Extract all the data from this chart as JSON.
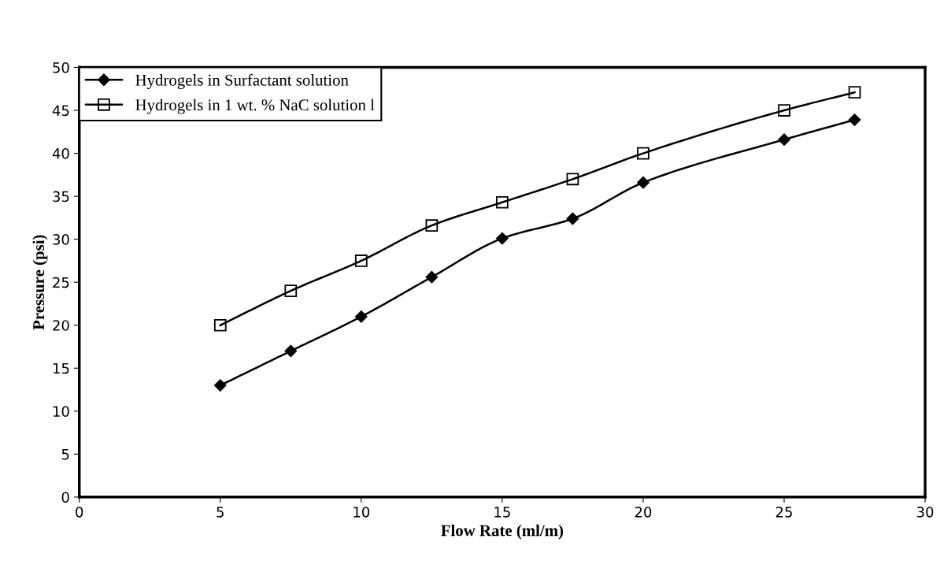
{
  "chart_data": {
    "type": "line",
    "xlabel": "Flow Rate (ml/m)",
    "ylabel": "Pressure (psi)",
    "x": [
      5,
      7.5,
      10,
      12.5,
      15,
      17.5,
      20,
      25,
      27.5
    ],
    "series": [
      {
        "name": "Hydrogels in Surfactant solution",
        "color": "#000000",
        "marker": "diamond",
        "values": [
          13,
          17,
          21,
          25.6,
          30.1,
          32.4,
          36.6,
          41.6,
          43.9
        ]
      },
      {
        "name": "Hydrogels in 1 wt. % NaC solution l",
        "color": "#000000",
        "marker": "square",
        "values": [
          20,
          24,
          27.5,
          31.6,
          34.3,
          37,
          40,
          45,
          47.1
        ]
      }
    ],
    "xlim": [
      0,
      30
    ],
    "xticks": [
      0,
      5,
      10,
      15,
      20,
      25,
      30
    ],
    "ylim": [
      0,
      50
    ],
    "yticks": [
      0,
      5,
      10,
      15,
      20,
      25,
      30,
      35,
      40,
      45,
      50
    ],
    "grid": false,
    "legend": "top left",
    "line_style": "solid"
  }
}
